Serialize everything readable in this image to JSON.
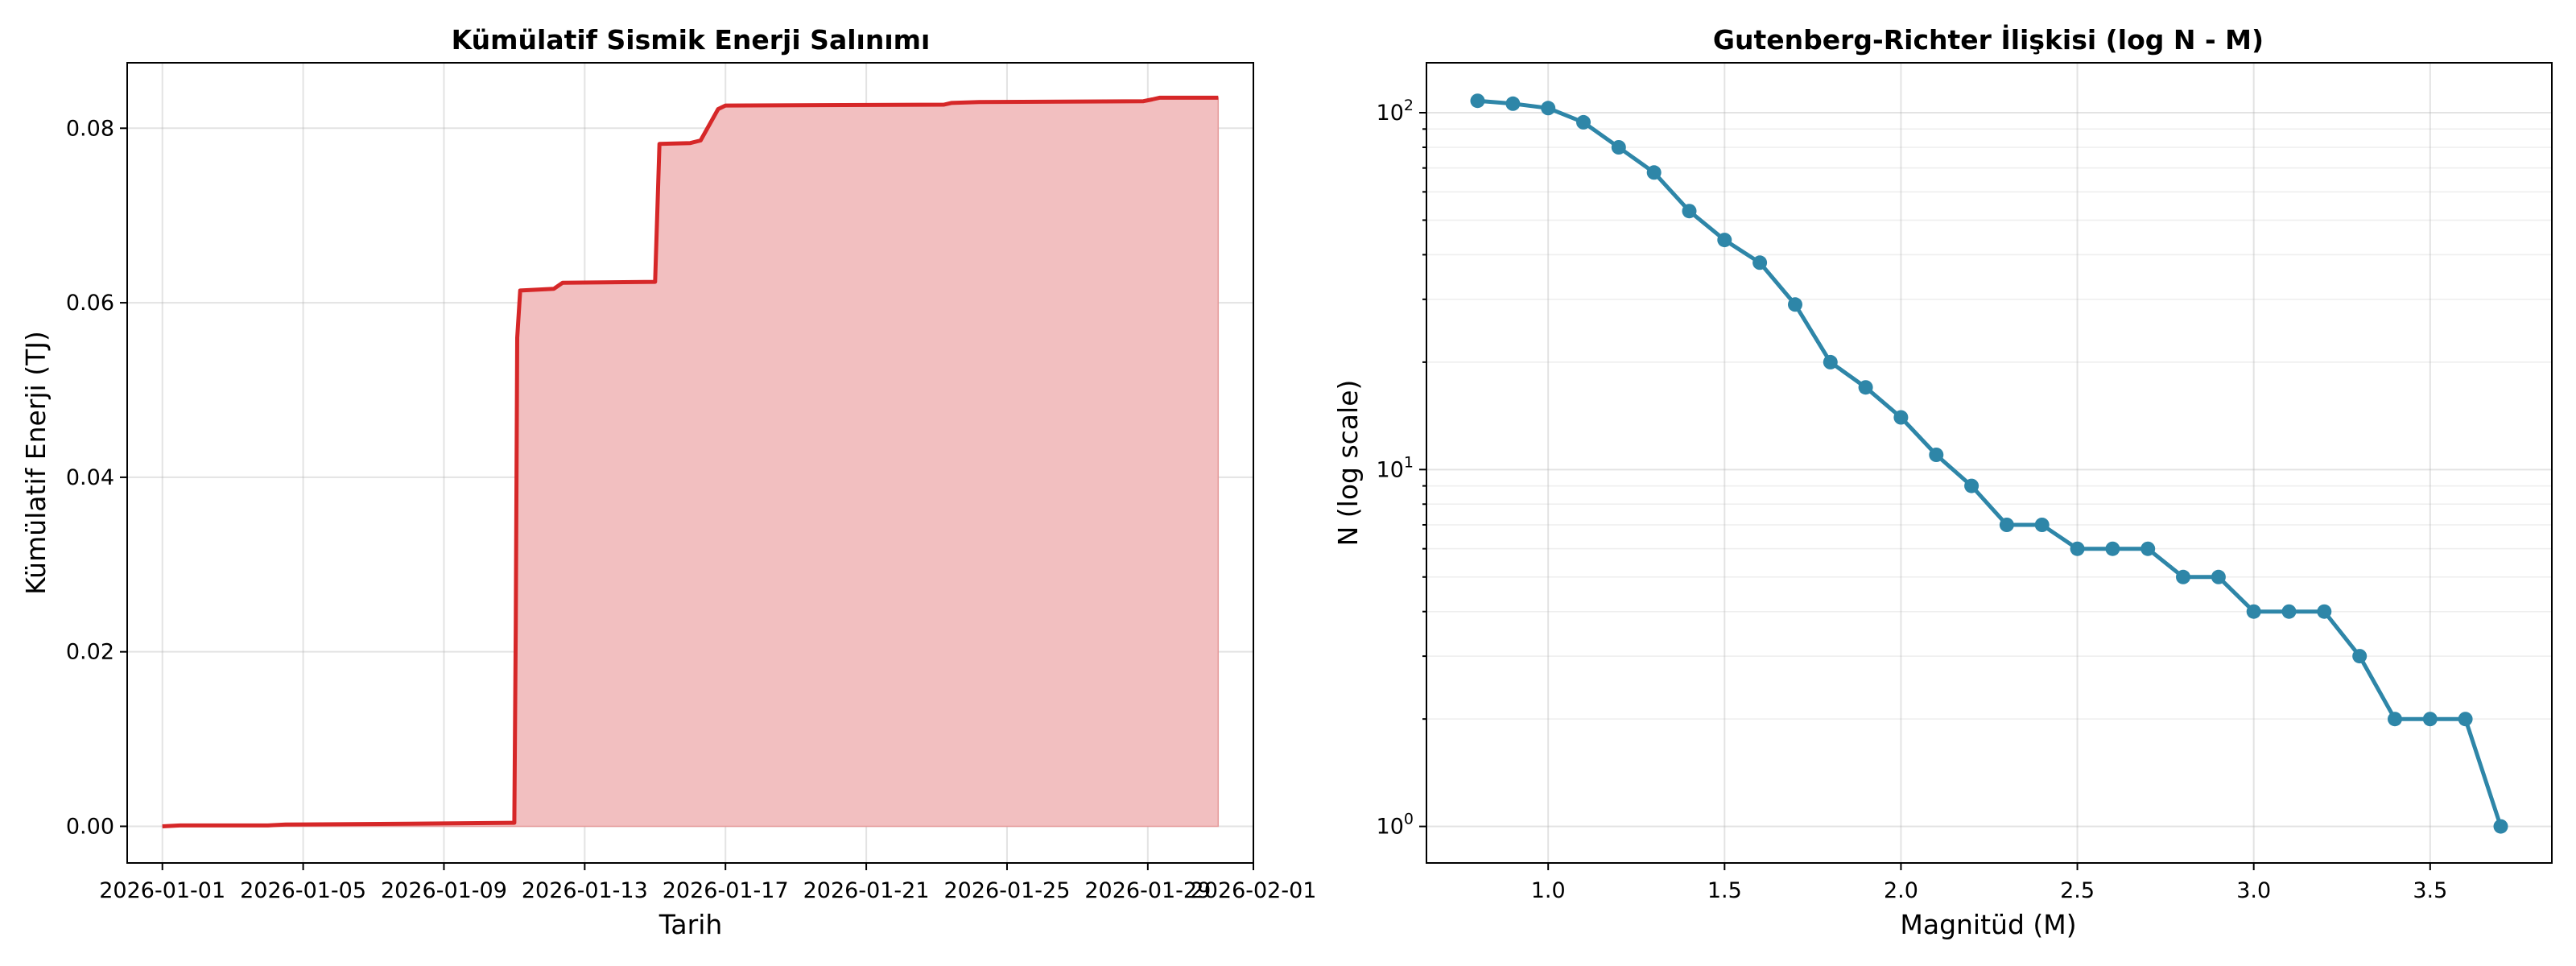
{
  "chart_data": [
    {
      "type": "area",
      "title": "Kümülatif Sismik Enerji Salınımı",
      "xlabel": "Tarih",
      "ylabel": "Kümülatif Enerji (TJ)",
      "x_ticks": [
        "2026-01-01",
        "2026-01-05",
        "2026-01-09",
        "2026-01-13",
        "2026-01-17",
        "2026-01-21",
        "2026-01-25",
        "2026-01-29",
        "2026-02-01"
      ],
      "y_ticks": [
        "0.00",
        "0.02",
        "0.04",
        "0.06",
        "0.08"
      ],
      "xlim": [
        "2025-12-31",
        "2026-02-01"
      ],
      "ylim": [
        -0.0042,
        0.0875
      ],
      "grid": true,
      "colors": {
        "line": "#d62728",
        "fill": "#f2bfc0"
      },
      "series": [
        {
          "x": [
            "2026-01-01",
            "2026-01-01 12:00",
            "2026-01-04",
            "2026-01-04 12:00",
            "2026-01-08",
            "2026-01-11",
            "2026-01-11 01:00",
            "2026-01-11 02:00",
            "2026-01-11 04:00",
            "2026-01-12 03:00",
            "2026-01-12 09:00",
            "2026-01-15",
            "2026-01-15 03:00",
            "2026-01-16",
            "2026-01-16 07:00",
            "2026-01-16 19:00",
            "2026-01-17",
            "2026-01-23 05:00",
            "2026-01-23 10:00",
            "2026-01-24 05:00",
            "2026-01-28 21:00",
            "2026-01-29 03:00",
            "2026-01-29 08:00",
            "2026-01-31"
          ],
          "y": [
            0.0,
            0.0001,
            0.0001,
            0.0002,
            0.0003,
            0.0004,
            0.023,
            0.056,
            0.0614,
            0.0616,
            0.0623,
            0.0624,
            0.0782,
            0.0783,
            0.0786,
            0.0822,
            0.0826,
            0.0827,
            0.0829,
            0.083,
            0.0831,
            0.0833,
            0.0835,
            0.0835
          ]
        }
      ]
    },
    {
      "type": "line",
      "title": "Gutenberg-Richter İlişkisi (log N - M)",
      "xlabel": "Magnitüd (M)",
      "ylabel": "N (log scale)",
      "yscale": "log",
      "x_ticks": [
        "1.0",
        "1.5",
        "2.0",
        "2.5",
        "3.0",
        "3.5"
      ],
      "y_ticks": [
        {
          "base": "10",
          "exp": "0"
        },
        {
          "base": "10",
          "exp": "1"
        },
        {
          "base": "10",
          "exp": "2"
        }
      ],
      "xlim": [
        0.655,
        3.845
      ],
      "ylim": [
        0.79,
        138
      ],
      "grid": true,
      "colors": {
        "line": "#2e86a8"
      },
      "series": [
        {
          "x": [
            0.8,
            0.9,
            1.0,
            1.1,
            1.2,
            1.3,
            1.4,
            1.5,
            1.6,
            1.7,
            1.8,
            1.9,
            2.0,
            2.1,
            2.2,
            2.3,
            2.4,
            2.5,
            2.6,
            2.7,
            2.8,
            2.9,
            3.0,
            3.1,
            3.2,
            3.3,
            3.4,
            3.5,
            3.6,
            3.7
          ],
          "y": [
            108,
            106,
            103,
            94,
            80,
            68,
            53,
            44,
            38,
            29,
            20,
            17,
            14,
            11,
            9,
            7,
            7,
            6,
            6,
            6,
            5,
            5,
            4,
            4,
            4,
            3,
            2,
            2,
            2,
            1
          ]
        }
      ]
    }
  ]
}
